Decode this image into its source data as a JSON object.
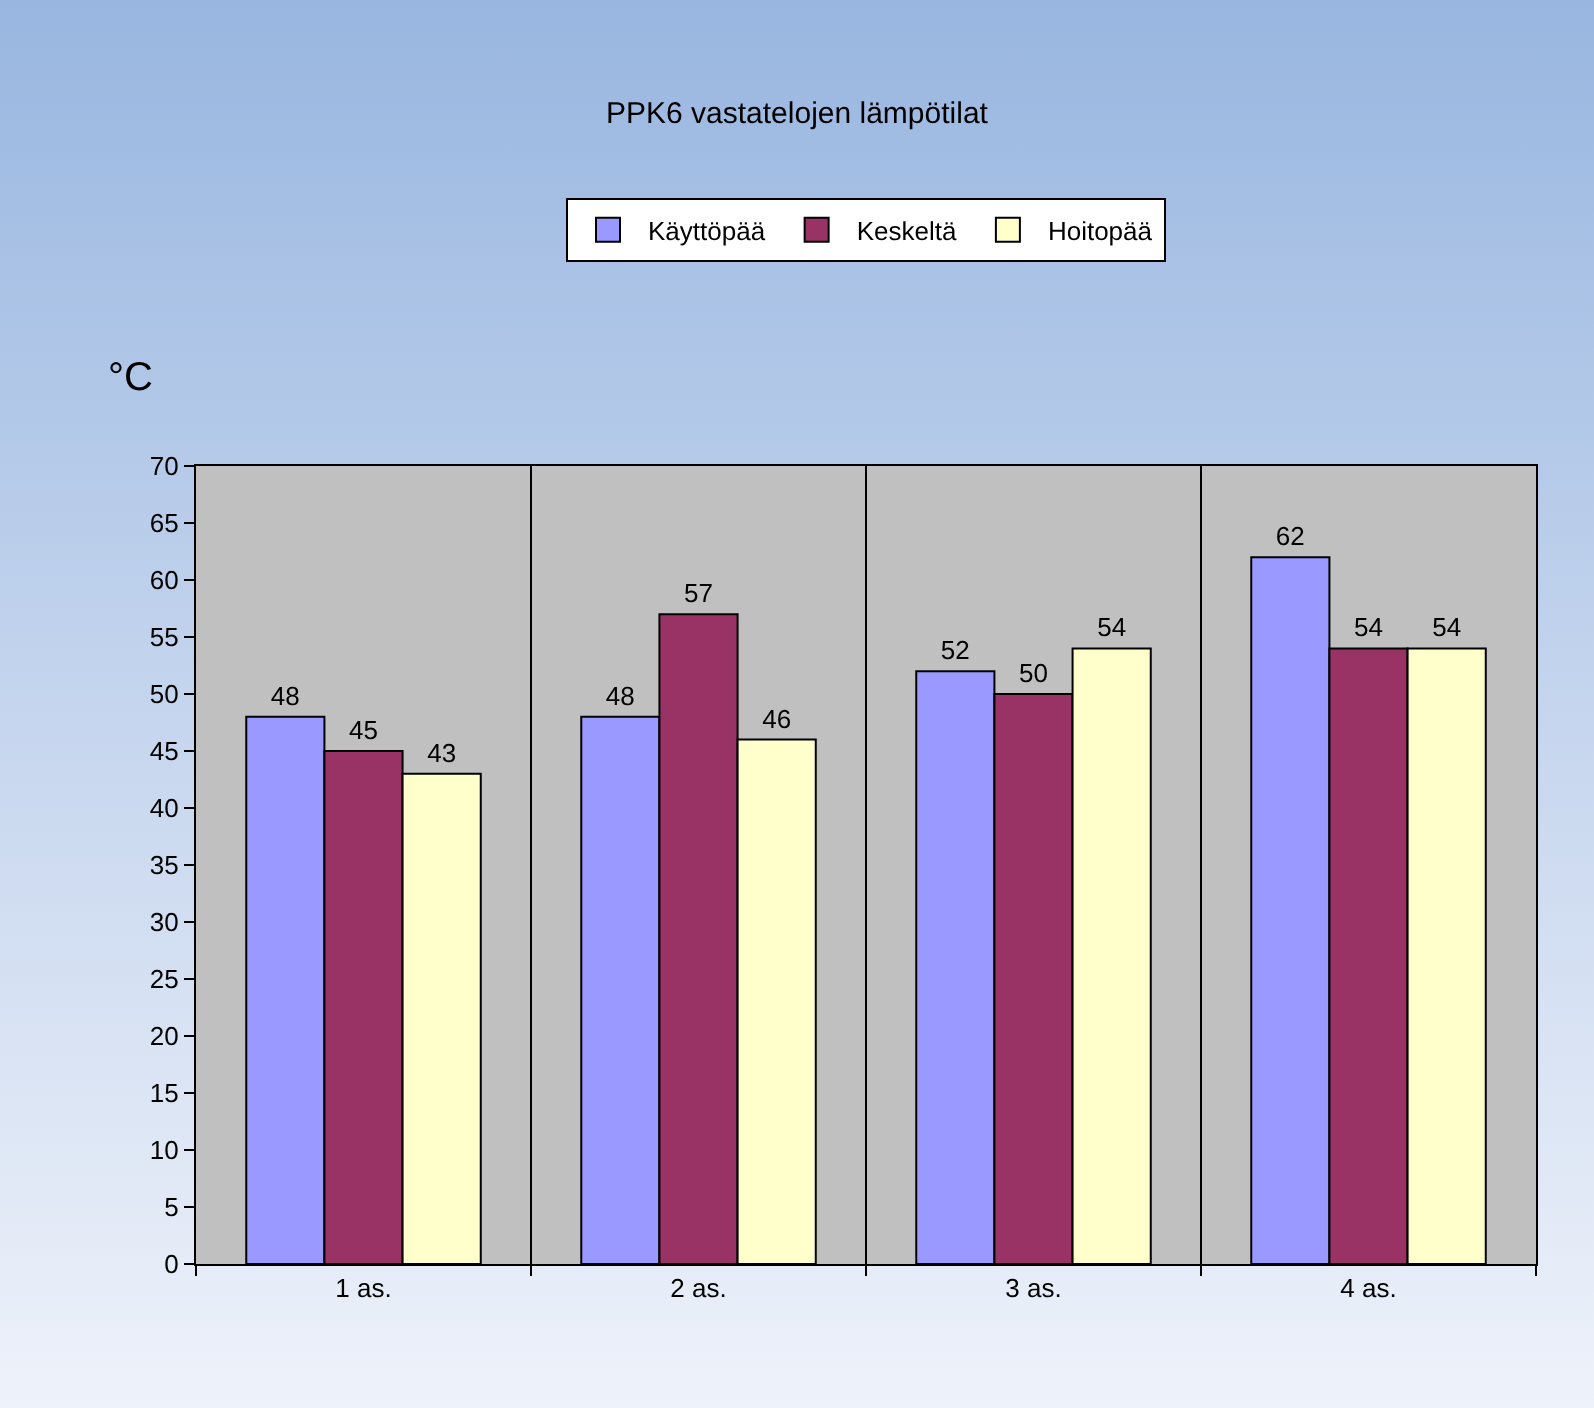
{
  "chart_data": {
    "type": "bar",
    "title": "PPK6 vastatelojen lämpötilat",
    "ylabel": "°C",
    "categories": [
      "1 as.",
      "2 as.",
      "3 as.",
      "4 as."
    ],
    "series": [
      {
        "name": "Käyttöpää",
        "color": "#9999ff",
        "values": [
          48,
          48,
          52,
          62
        ]
      },
      {
        "name": "Keskeltä",
        "color": "#993366",
        "values": [
          45,
          57,
          50,
          54
        ]
      },
      {
        "name": "Hoitopää",
        "color": "#ffffcc",
        "values": [
          43,
          46,
          54,
          54
        ]
      }
    ],
    "ylim": [
      0,
      70
    ],
    "yticks": [
      0,
      5,
      10,
      15,
      20,
      25,
      30,
      35,
      40,
      45,
      50,
      55,
      60,
      65,
      70
    ],
    "grid": "x",
    "legend": "top",
    "data_labels": true
  }
}
